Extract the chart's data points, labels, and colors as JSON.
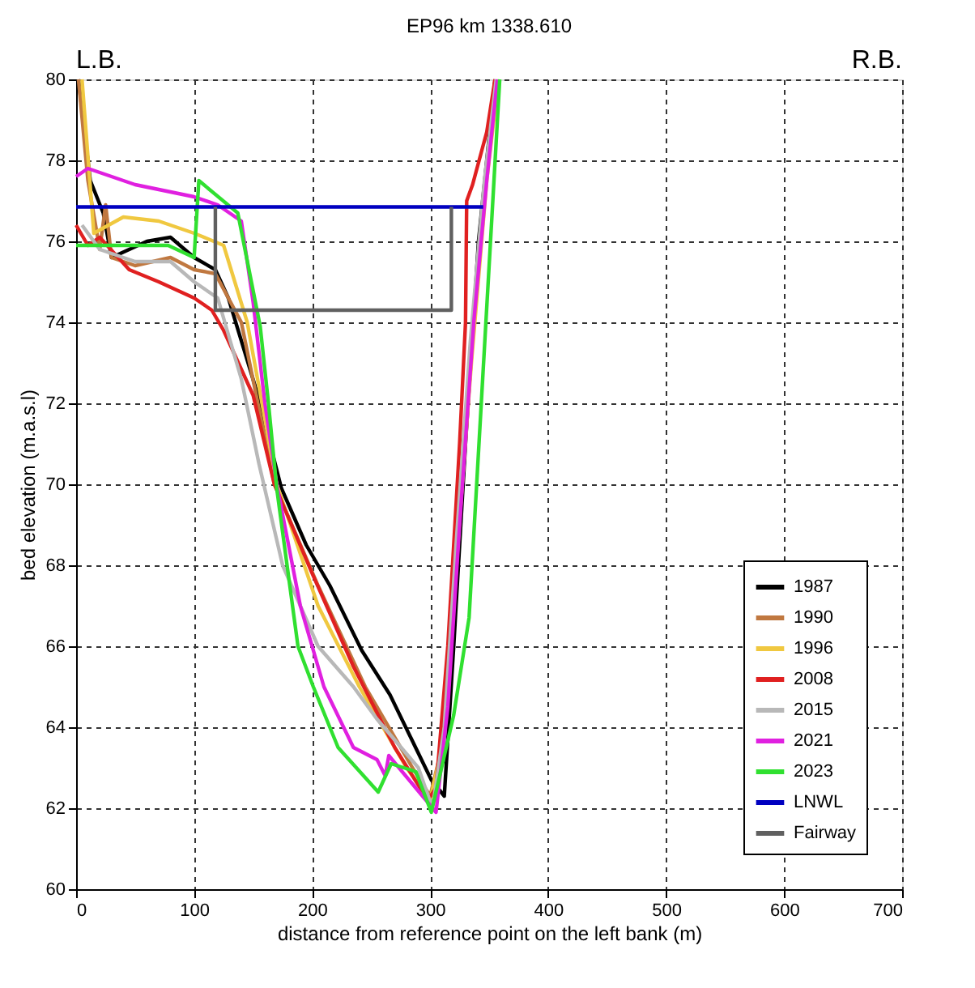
{
  "chart_data": {
    "type": "line",
    "title": "EP96 km 1338.610",
    "xlabel": "distance from reference point on the left bank (m)",
    "ylabel": "bed elevation (m.a.s.l)",
    "annotations": [
      "L.B.",
      "R.B."
    ],
    "xlim": [
      0,
      700
    ],
    "xticks": [
      0,
      100,
      200,
      300,
      400,
      500,
      600,
      700
    ],
    "ylim": [
      60,
      80
    ],
    "yticks": [
      60,
      62,
      64,
      66,
      68,
      70,
      72,
      74,
      76,
      78,
      80
    ],
    "grid": true,
    "legend": "bottom right",
    "line_style": "solid",
    "marker": "none",
    "series": [
      {
        "name": "1987",
        "color": "#000000",
        "x": [
          2,
          12,
          23,
          30,
          45,
          60,
          80,
          100,
          118,
          129,
          153,
          174,
          195,
          215,
          242,
          266,
          301,
          312,
          320,
          330,
          341,
          355
        ],
        "values": [
          80,
          77.5,
          76.7,
          75.6,
          75.8,
          76.0,
          76.1,
          75.6,
          75.3,
          74.6,
          72.3,
          69.9,
          68.5,
          67.5,
          65.9,
          64.8,
          62.7,
          62.3,
          66,
          71,
          76,
          80
        ]
      },
      {
        "name": "1990",
        "color": "#c07840",
        "x": [
          2,
          10,
          20,
          25,
          30,
          50,
          80,
          100,
          118,
          140,
          168,
          205,
          245,
          285,
          300,
          310,
          320,
          332,
          345,
          356
        ],
        "values": [
          80,
          77.5,
          75.8,
          76.9,
          75.6,
          75.4,
          75.6,
          75.3,
          75.2,
          74.0,
          70.0,
          67.5,
          65.0,
          63.0,
          62.3,
          63.5,
          67,
          72,
          77,
          80
        ]
      },
      {
        "name": "1996",
        "color": "#f0c840",
        "x": [
          5,
          15,
          40,
          70,
          100,
          125,
          145,
          170,
          205,
          240,
          280,
          300,
          310,
          322,
          335,
          348,
          358
        ],
        "values": [
          80,
          76.2,
          76.6,
          76.5,
          76.2,
          75.9,
          74.0,
          70.0,
          67.0,
          65.0,
          63.0,
          62.2,
          63.5,
          68,
          73,
          77.5,
          80
        ]
      },
      {
        "name": "2008",
        "color": "#e02020",
        "x": [
          0,
          10,
          20,
          45,
          70,
          100,
          115,
          125,
          150,
          168,
          200,
          235,
          270,
          298,
          305,
          315,
          325,
          330,
          331,
          336,
          348,
          355
        ],
        "values": [
          76.4,
          75.9,
          76.1,
          75.3,
          75.0,
          74.6,
          74.3,
          73.8,
          72.2,
          70.0,
          67.8,
          65.5,
          63.5,
          62.2,
          62.5,
          66,
          71,
          74,
          77,
          77.4,
          78.7,
          80
        ]
      },
      {
        "name": "2015",
        "color": "#b8b8b8",
        "x": [
          5,
          20,
          50,
          80,
          100,
          120,
          140,
          155,
          175,
          205,
          235,
          255,
          290,
          302,
          312,
          322,
          334,
          346,
          356
        ],
        "values": [
          76.4,
          75.8,
          75.5,
          75.5,
          75.0,
          74.6,
          72.6,
          70.5,
          68.0,
          66.0,
          65.0,
          64.2,
          63.0,
          62.0,
          64,
          68.5,
          73.5,
          77.5,
          80
        ]
      },
      {
        "name": "2021",
        "color": "#e020e0",
        "x": [
          0,
          10,
          50,
          100,
          120,
          140,
          150,
          160,
          170,
          190,
          210,
          235,
          255,
          262,
          265,
          285,
          305,
          315,
          325,
          337,
          348,
          357
        ],
        "values": [
          77.6,
          77.8,
          77.4,
          77.1,
          76.9,
          76.5,
          74.5,
          72.0,
          70.0,
          67.0,
          65.0,
          63.5,
          63.2,
          62.8,
          63.3,
          62.6,
          61.9,
          64.5,
          69,
          74,
          77.5,
          80
        ]
      },
      {
        "name": "2023",
        "color": "#30e030",
        "x": [
          0,
          78,
          100,
          104,
          137,
          156,
          163,
          170,
          188,
          201,
          222,
          256,
          267,
          288,
          301,
          320,
          333,
          359
        ],
        "values": [
          75.9,
          75.9,
          75.6,
          77.5,
          76.7,
          73.9,
          72.0,
          69.9,
          66.0,
          65.0,
          63.5,
          62.4,
          63.1,
          62.9,
          61.9,
          64.3,
          66.7,
          80
        ]
      },
      {
        "name": "LNWL",
        "color": "#0000c0",
        "x": [
          0,
          345
        ],
        "values": [
          76.85,
          76.85
        ]
      },
      {
        "name": "Fairway",
        "color": "#606060",
        "x": [
          118,
          118,
          318,
          318
        ],
        "values": [
          76.85,
          74.3,
          74.3,
          76.85
        ]
      }
    ]
  }
}
